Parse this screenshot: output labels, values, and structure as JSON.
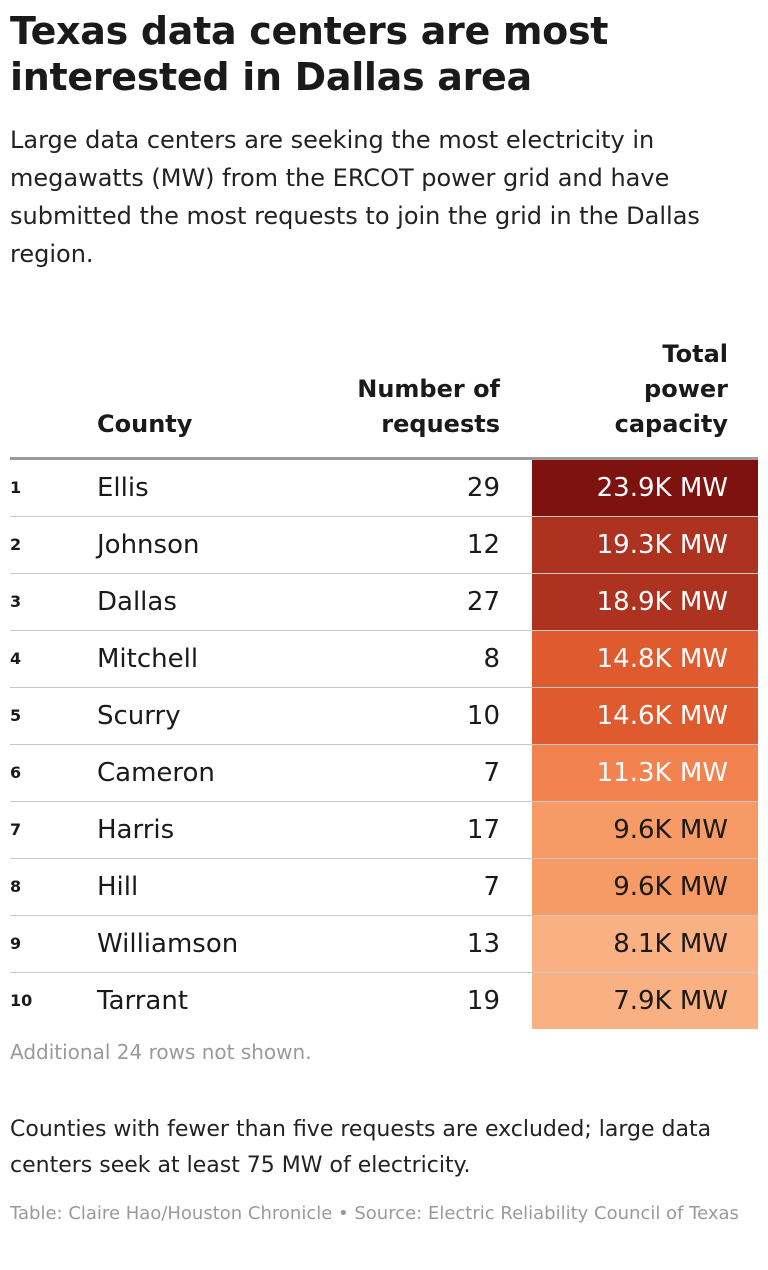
{
  "chart_data": {
    "type": "table",
    "title": "Texas data centers are most interested in Dallas area",
    "subtitle": "Large data centers are seeking the most electricity in megawatts (MW) from the ERCOT power grid and have submitted the most requests to join the grid in the Dallas region.",
    "columns": {
      "county": "County",
      "requests": "Number of\nrequests",
      "capacity": "Total\npower\ncapacity"
    },
    "rows": [
      {
        "rank": "1",
        "county": "Ellis",
        "requests": 29,
        "capacity_label": "23.9K MW",
        "capacity_mw": 23900,
        "color": "#7d120f",
        "text_color": "#ffffff"
      },
      {
        "rank": "2",
        "county": "Johnson",
        "requests": 12,
        "capacity_label": "19.3K MW",
        "capacity_mw": 19300,
        "color": "#ad3220",
        "text_color": "#ffffff"
      },
      {
        "rank": "3",
        "county": "Dallas",
        "requests": 27,
        "capacity_label": "18.9K MW",
        "capacity_mw": 18900,
        "color": "#ad3220",
        "text_color": "#ffffff"
      },
      {
        "rank": "4",
        "county": "Mitchell",
        "requests": 8,
        "capacity_label": "14.8K MW",
        "capacity_mw": 14800,
        "color": "#df5b2f",
        "text_color": "#ffffff"
      },
      {
        "rank": "5",
        "county": "Scurry",
        "requests": 10,
        "capacity_label": "14.6K MW",
        "capacity_mw": 14600,
        "color": "#df5b2f",
        "text_color": "#ffffff"
      },
      {
        "rank": "6",
        "county": "Cameron",
        "requests": 7,
        "capacity_label": "11.3K MW",
        "capacity_mw": 11300,
        "color": "#f2824f",
        "text_color": "#ffffff"
      },
      {
        "rank": "7",
        "county": "Harris",
        "requests": 17,
        "capacity_label": "9.6K MW",
        "capacity_mw": 9600,
        "color": "#f69a66",
        "text_color": "#1a1a1a"
      },
      {
        "rank": "8",
        "county": "Hill",
        "requests": 7,
        "capacity_label": "9.6K MW",
        "capacity_mw": 9600,
        "color": "#f69a66",
        "text_color": "#1a1a1a"
      },
      {
        "rank": "9",
        "county": "Williamson",
        "requests": 13,
        "capacity_label": "8.1K MW",
        "capacity_mw": 8100,
        "color": "#f9b184",
        "text_color": "#1a1a1a"
      },
      {
        "rank": "10",
        "county": "Tarrant",
        "requests": 19,
        "capacity_label": "7.9K MW",
        "capacity_mw": 7900,
        "color": "#f9b184",
        "text_color": "#1a1a1a"
      }
    ],
    "more_rows_note": "Additional 24 rows not shown.",
    "footnote": "Counties with fewer than five requests are excluded; large data centers seek at least 75 MW of electricity.",
    "credit": "Table: Claire Hao/Houston Chronicle • Source: Electric Reliability Council of Texas"
  }
}
